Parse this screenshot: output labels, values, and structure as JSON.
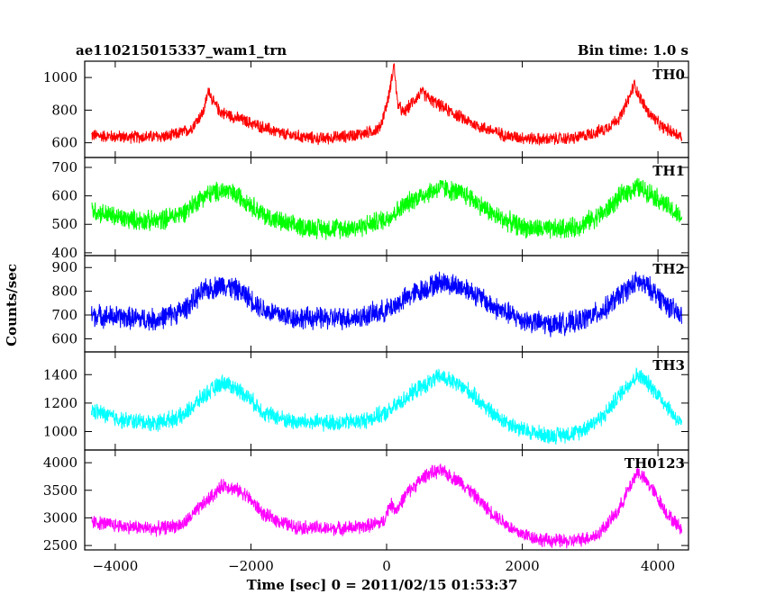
{
  "chart_data": {
    "type": "line",
    "title": "ae110215015337_wam1_trn",
    "bin_time_label": "Bin time: 1.0 s",
    "xlabel": "Time [sec] 0 = 2011/02/15 01:53:37",
    "ylabel": "Counts/sec",
    "xlim": [
      -4450,
      4450
    ],
    "x_ticks": [
      -4000,
      -2000,
      0,
      2000,
      4000
    ],
    "x_tick_labels": [
      "−4000",
      "−2000",
      "0",
      "2000",
      "4000"
    ],
    "panels": [
      {
        "name": "TH0",
        "color": "#ff0000",
        "ylim": [
          510,
          1100
        ],
        "y_ticks": [
          600,
          800,
          1000
        ],
        "y_tick_labels": [
          "600",
          "800",
          "1000"
        ],
        "x": [
          -4350,
          -3800,
          -3200,
          -2900,
          -2700,
          -2620,
          -2560,
          -2450,
          -2000,
          -1500,
          -1000,
          -600,
          -300,
          -100,
          20,
          80,
          110,
          160,
          250,
          400,
          520,
          600,
          700,
          900,
          1300,
          1800,
          2300,
          2800,
          3200,
          3450,
          3580,
          3650,
          3720,
          3850,
          4050,
          4350
        ],
        "y": [
          645,
          635,
          640,
          680,
          790,
          930,
          850,
          790,
          720,
          650,
          625,
          640,
          660,
          690,
          860,
          1010,
          1080,
          840,
          780,
          860,
          910,
          880,
          850,
          800,
          710,
          640,
          620,
          630,
          680,
          760,
          880,
          960,
          890,
          790,
          700,
          640
        ],
        "noise": 45
      },
      {
        "name": "TH1",
        "color": "#00ff00",
        "ylim": [
          390,
          735
        ],
        "y_ticks": [
          400,
          500,
          600,
          700
        ],
        "y_tick_labels": [
          "400",
          "500",
          "600",
          "700"
        ],
        "x": [
          -4350,
          -3900,
          -3400,
          -3000,
          -2700,
          -2400,
          -2100,
          -1800,
          -1400,
          -900,
          -400,
          0,
          400,
          800,
          1200,
          1600,
          2000,
          2400,
          2800,
          3200,
          3500,
          3700,
          3900,
          4150,
          4350
        ],
        "y": [
          550,
          520,
          510,
          540,
          600,
          620,
          590,
          530,
          495,
          485,
          490,
          520,
          590,
          630,
          600,
          530,
          490,
          480,
          490,
          540,
          610,
          630,
          610,
          560,
          520
        ],
        "noise": 42
      },
      {
        "name": "TH2",
        "color": "#0000ff",
        "ylim": [
          545,
          950
        ],
        "y_ticks": [
          600,
          700,
          800,
          900
        ],
        "y_tick_labels": [
          "600",
          "700",
          "800",
          "900"
        ],
        "x": [
          -4350,
          -3900,
          -3400,
          -3000,
          -2700,
          -2400,
          -2100,
          -1800,
          -1400,
          -900,
          -400,
          0,
          400,
          800,
          1200,
          1600,
          2000,
          2400,
          2800,
          3200,
          3500,
          3700,
          3900,
          4150,
          4350
        ],
        "y": [
          700,
          690,
          680,
          720,
          800,
          830,
          790,
          720,
          690,
          685,
          690,
          720,
          790,
          840,
          810,
          730,
          680,
          660,
          670,
          720,
          800,
          840,
          810,
          740,
          690
        ],
        "noise": 55
      },
      {
        "name": "TH3",
        "color": "#00ffff",
        "ylim": [
          870,
          1560
        ],
        "y_ticks": [
          1000,
          1200,
          1400
        ],
        "y_tick_labels": [
          "1000",
          "1200",
          "1400"
        ],
        "x": [
          -4350,
          -3900,
          -3400,
          -3000,
          -2700,
          -2400,
          -2100,
          -1800,
          -1400,
          -900,
          -400,
          0,
          400,
          800,
          1200,
          1600,
          2000,
          2400,
          2800,
          3200,
          3500,
          3700,
          3900,
          4150,
          4350
        ],
        "y": [
          1150,
          1080,
          1060,
          1110,
          1250,
          1350,
          1270,
          1130,
          1070,
          1060,
          1070,
          1130,
          1280,
          1390,
          1290,
          1110,
          1010,
          970,
          990,
          1110,
          1300,
          1400,
          1320,
          1170,
          1040
        ],
        "noise": 70
      },
      {
        "name": "TH0123",
        "color": "#ff00ff",
        "ylim": [
          2420,
          4230
        ],
        "y_ticks": [
          2500,
          3000,
          3500,
          4000
        ],
        "y_tick_labels": [
          "2500",
          "3000",
          "3500",
          "4000"
        ],
        "x": [
          -4350,
          -3900,
          -3400,
          -3000,
          -2700,
          -2400,
          -2100,
          -1800,
          -1400,
          -900,
          -400,
          -50,
          50,
          150,
          300,
          600,
          800,
          1100,
          1500,
          1900,
          2300,
          2700,
          3100,
          3400,
          3600,
          3700,
          3900,
          4150,
          4350
        ],
        "y": [
          2930,
          2850,
          2800,
          2880,
          3250,
          3600,
          3450,
          3050,
          2850,
          2800,
          2830,
          2920,
          3250,
          3150,
          3450,
          3800,
          3850,
          3650,
          3150,
          2750,
          2600,
          2570,
          2680,
          3100,
          3600,
          3850,
          3550,
          3050,
          2800
        ],
        "noise": 150
      }
    ]
  }
}
